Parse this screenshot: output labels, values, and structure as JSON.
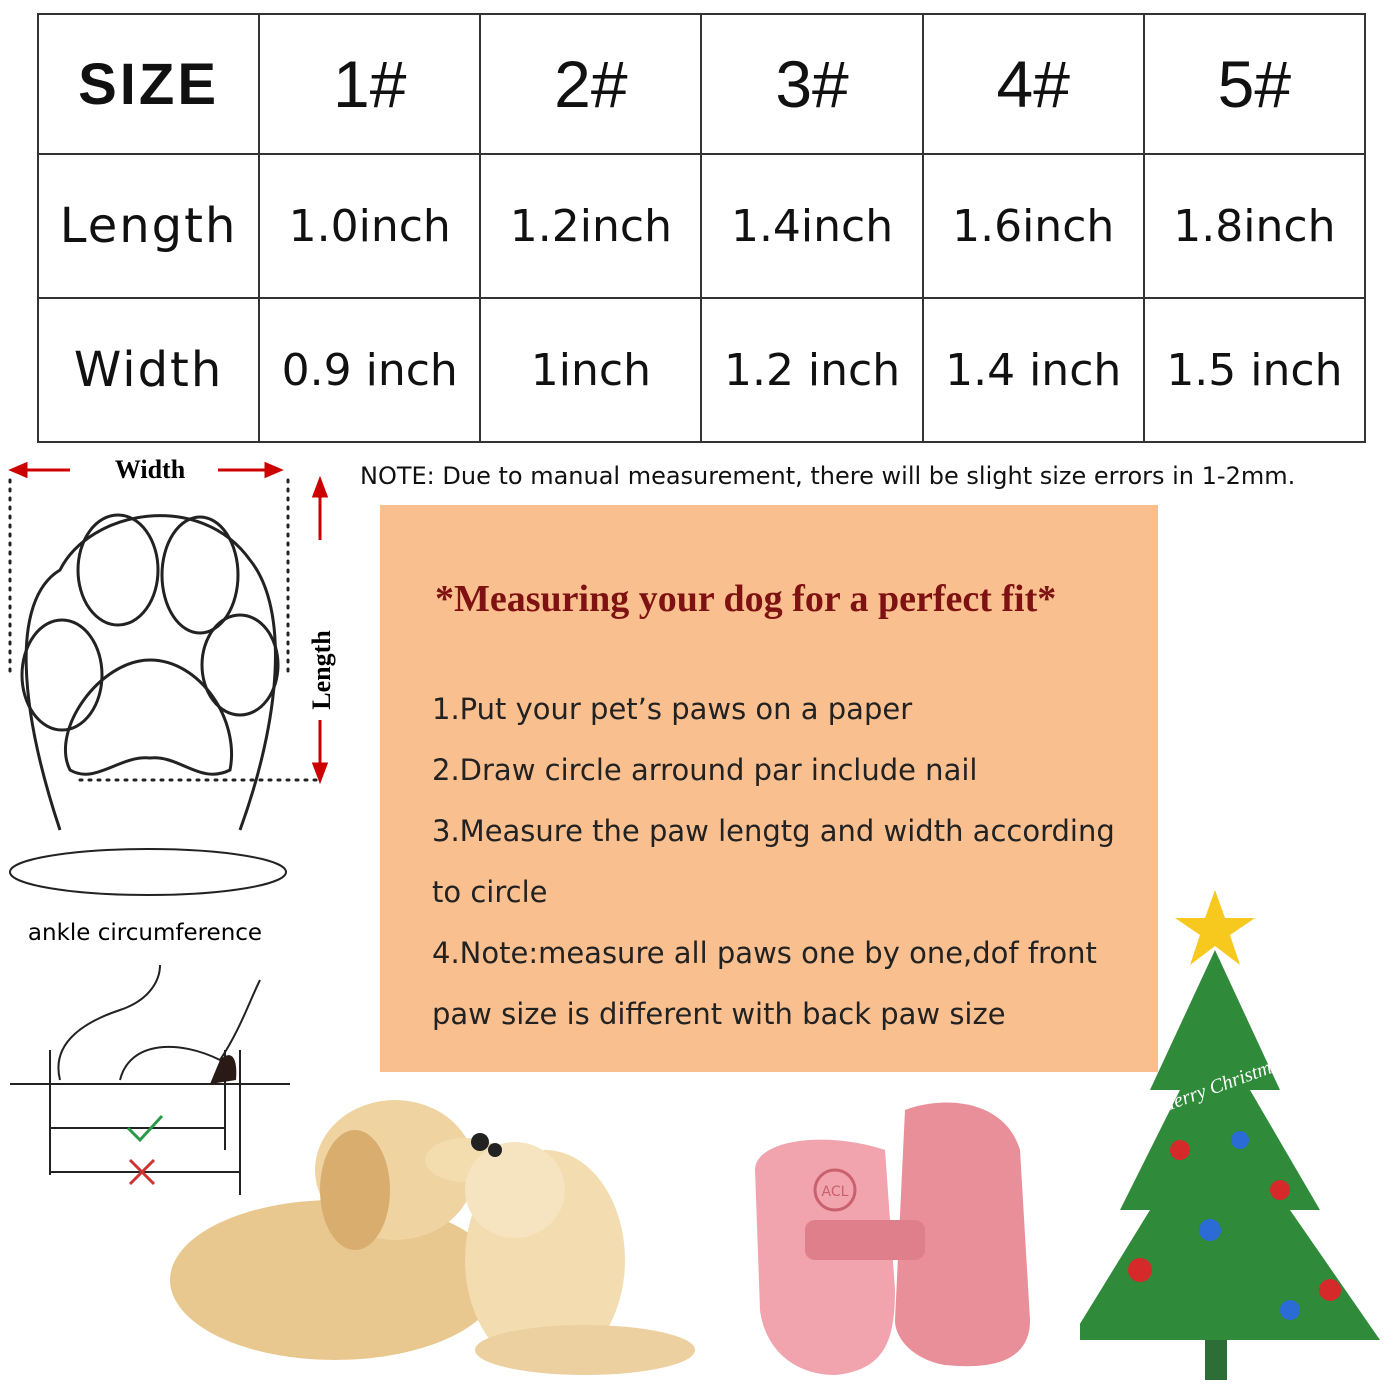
{
  "size_table": {
    "header_label": "SIZE",
    "sizes": [
      "1#",
      "2#",
      "3#",
      "4#",
      "5#"
    ],
    "rows": [
      {
        "label": "Length",
        "values": [
          "1.0inch",
          "1.2inch",
          "1.4inch",
          "1.6inch",
          "1.8inch"
        ]
      },
      {
        "label": "Width",
        "values": [
          "0.9 inch",
          "1inch",
          "1.2 inch",
          "1.4 inch",
          "1.5 inch"
        ]
      }
    ]
  },
  "note": "NOTE:   Due to manual measurement, there will be slight size errors in 1-2mm.",
  "diagram": {
    "width_label": "Width",
    "length_label": "Length",
    "ankle_label": "ankle  circumference"
  },
  "instructions": {
    "title": "*Measuring your dog for a perfect fit*",
    "steps": [
      "1.Put your pet’s paws on a paper",
      "2.Draw  circle arround par include nail",
      "3.Measure the paw lengtg and width according",
      "to circle",
      "4.Note:measure all paws one by one,dof front",
      "paw size is different with back paw size"
    ],
    "background_color": "#f9bf8f",
    "title_color": "#7e1111"
  },
  "tree_banner": "Merry Christmas",
  "boot_logo": "ACL"
}
